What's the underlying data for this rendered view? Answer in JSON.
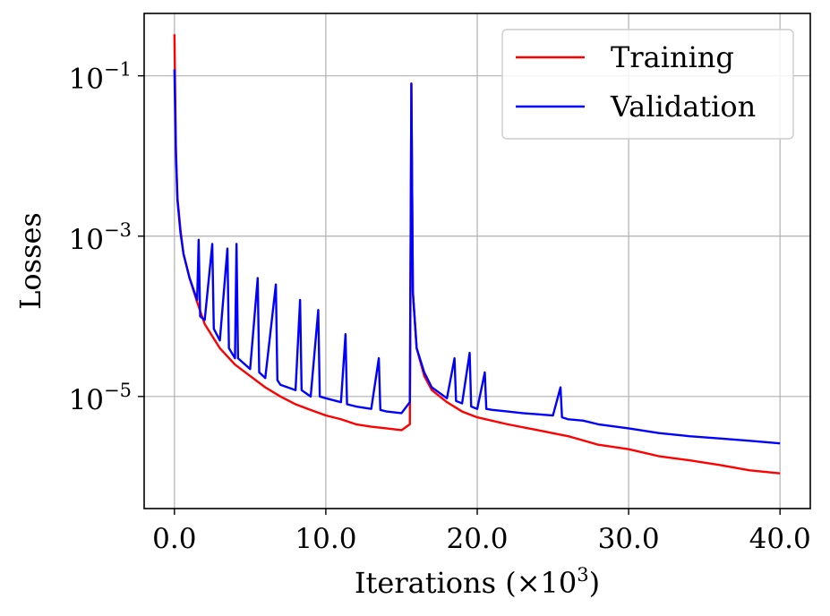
{
  "chart_data": {
    "type": "line",
    "title": "",
    "xlabel": "Iterations (×10³)",
    "xlabel_parts": [
      "Iterations (×10",
      "3",
      ")"
    ],
    "ylabel": "Losses",
    "yscale": "log",
    "xlim": [
      -2.0,
      42.0
    ],
    "ylim": [
      4e-07,
      0.6
    ],
    "grid": true,
    "legend_position": "top-right",
    "x_ticks": [
      0,
      10,
      20,
      30,
      40
    ],
    "x_tick_labels": [
      "0.0",
      "10.0",
      "20.0",
      "30.0",
      "40.0"
    ],
    "y_ticks": [
      {
        "value": 0.1,
        "base": "10",
        "exponent": "−1"
      },
      {
        "value": 0.001,
        "base": "10",
        "exponent": "−3"
      },
      {
        "value": 1e-05,
        "base": "10",
        "exponent": "−5"
      }
    ],
    "series": [
      {
        "name": "Training",
        "color": "#ff0000",
        "points": [
          [
            0,
            0.33
          ],
          [
            0.1,
            0.012
          ],
          [
            0.2,
            0.003
          ],
          [
            0.4,
            0.0012
          ],
          [
            0.6,
            0.0006
          ],
          [
            1.0,
            0.0003
          ],
          [
            1.5,
            0.00015
          ],
          [
            2.0,
            8e-05
          ],
          [
            3.0,
            4e-05
          ],
          [
            4.0,
            2.5e-05
          ],
          [
            5.0,
            1.8e-05
          ],
          [
            6.0,
            1.3e-05
          ],
          [
            7.0,
            1e-05
          ],
          [
            8.0,
            8e-06
          ],
          [
            9.0,
            6.8e-06
          ],
          [
            10.0,
            5.8e-06
          ],
          [
            11.0,
            5.2e-06
          ],
          [
            12.0,
            4.5e-06
          ],
          [
            13.0,
            4.2e-06
          ],
          [
            14.0,
            4e-06
          ],
          [
            15.0,
            3.8e-06
          ],
          [
            15.55,
            4.5e-06
          ],
          [
            15.65,
            0.08
          ],
          [
            15.75,
            0.0002
          ],
          [
            16.0,
            4e-05
          ],
          [
            16.5,
            1.8e-05
          ],
          [
            17.0,
            1.2e-05
          ],
          [
            18.0,
            8.5e-06
          ],
          [
            19.0,
            6.5e-06
          ],
          [
            20.0,
            5.5e-06
          ],
          [
            22.0,
            4.5e-06
          ],
          [
            24.0,
            3.8e-06
          ],
          [
            26.0,
            3.2e-06
          ],
          [
            28.0,
            2.5e-06
          ],
          [
            30.0,
            2.2e-06
          ],
          [
            32.0,
            1.8e-06
          ],
          [
            34.0,
            1.6e-06
          ],
          [
            36.0,
            1.4e-06
          ],
          [
            38.0,
            1.2e-06
          ],
          [
            40.0,
            1.1e-06
          ]
        ]
      },
      {
        "name": "Validation",
        "color": "#0000ff",
        "points": [
          [
            0,
            0.12
          ],
          [
            0.1,
            0.01
          ],
          [
            0.2,
            0.0028
          ],
          [
            0.4,
            0.0011
          ],
          [
            0.6,
            0.0006
          ],
          [
            1.0,
            0.0003
          ],
          [
            1.5,
            0.00016
          ],
          [
            1.6,
            0.0009
          ],
          [
            1.7,
            0.0001
          ],
          [
            2.0,
            9e-05
          ],
          [
            2.5,
            0.0008
          ],
          [
            2.6,
            7e-05
          ],
          [
            3.0,
            5e-05
          ],
          [
            3.5,
            0.0007
          ],
          [
            3.6,
            4e-05
          ],
          [
            4.0,
            3e-05
          ],
          [
            4.1,
            0.0008
          ],
          [
            4.2,
            3e-05
          ],
          [
            5.0,
            2.2e-05
          ],
          [
            5.5,
            0.0003
          ],
          [
            5.6,
            2e-05
          ],
          [
            6.0,
            1.7e-05
          ],
          [
            6.7,
            0.00025
          ],
          [
            6.8,
            1.6e-05
          ],
          [
            7.0,
            1.4e-05
          ],
          [
            8.0,
            1.2e-05
          ],
          [
            8.3,
            0.00016
          ],
          [
            8.4,
            1.2e-05
          ],
          [
            9.0,
            1e-05
          ],
          [
            9.5,
            0.00012
          ],
          [
            9.6,
            1e-05
          ],
          [
            10.0,
            9.5e-06
          ],
          [
            11.0,
            8.5e-06
          ],
          [
            11.3,
            6e-05
          ],
          [
            11.4,
            8e-06
          ],
          [
            12.0,
            7.5e-06
          ],
          [
            13.0,
            7e-06
          ],
          [
            13.5,
            3e-05
          ],
          [
            13.6,
            6.8e-06
          ],
          [
            14.0,
            6.5e-06
          ],
          [
            15.0,
            6.2e-06
          ],
          [
            15.55,
            8.5e-06
          ],
          [
            15.65,
            0.08
          ],
          [
            15.75,
            0.0002
          ],
          [
            16.0,
            4e-05
          ],
          [
            16.5,
            2e-05
          ],
          [
            17.0,
            1.3e-05
          ],
          [
            18.0,
            9.5e-06
          ],
          [
            18.5,
            3e-05
          ],
          [
            18.6,
            8.8e-06
          ],
          [
            19.0,
            8.2e-06
          ],
          [
            19.5,
            3.5e-05
          ],
          [
            19.6,
            7.5e-06
          ],
          [
            20.0,
            7e-06
          ],
          [
            20.5,
            2e-05
          ],
          [
            20.6,
            7e-06
          ],
          [
            21.0,
            6.8e-06
          ],
          [
            22.0,
            6.5e-06
          ],
          [
            23.0,
            6.2e-06
          ],
          [
            24.0,
            6e-06
          ],
          [
            25.0,
            5.8e-06
          ],
          [
            25.5,
            1.3e-05
          ],
          [
            25.6,
            5.5e-06
          ],
          [
            26.0,
            5.2e-06
          ],
          [
            27.0,
            5e-06
          ],
          [
            28.0,
            4.5e-06
          ],
          [
            30.0,
            4e-06
          ],
          [
            32.0,
            3.5e-06
          ],
          [
            34.0,
            3.2e-06
          ],
          [
            36.0,
            3e-06
          ],
          [
            38.0,
            2.8e-06
          ],
          [
            40.0,
            2.6e-06
          ]
        ]
      }
    ]
  }
}
